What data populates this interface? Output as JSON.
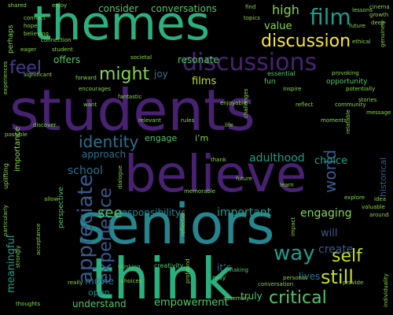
{
  "background": "#000000",
  "palette": {
    "purple-deep": "#440154",
    "purple": "#482173",
    "indigo": "#433e85",
    "blue": "#38598c",
    "teal-blue": "#2d708e",
    "teal": "#25858e",
    "sea-green": "#1e9b8a",
    "green": "#2ab07f",
    "light-green": "#52c569",
    "lime": "#86d549",
    "yellow": "#c2df23",
    "bright-yellow": "#fde725"
  },
  "words": [
    {
      "text": "students"
    },
    {
      "text": "themes"
    },
    {
      "text": "seniors"
    },
    {
      "text": "believe"
    },
    {
      "text": "think"
    },
    {
      "text": "discussions"
    },
    {
      "text": "film"
    },
    {
      "text": "discussion"
    },
    {
      "text": "appreciate"
    },
    {
      "text": "experience"
    },
    {
      "text": "feel"
    },
    {
      "text": "might"
    },
    {
      "text": "identity"
    },
    {
      "text": "world"
    },
    {
      "text": "way"
    },
    {
      "text": "self"
    },
    {
      "text": "still"
    },
    {
      "text": "critical"
    },
    {
      "text": "see"
    },
    {
      "text": "important"
    },
    {
      "text": "engaging"
    },
    {
      "text": "adulthood"
    },
    {
      "text": "choice"
    },
    {
      "text": "consider"
    },
    {
      "text": "conversations"
    },
    {
      "text": "high"
    },
    {
      "text": "value"
    },
    {
      "text": "offers"
    },
    {
      "text": "resonate"
    },
    {
      "text": "films"
    },
    {
      "text": "joy"
    },
    {
      "text": "approach"
    },
    {
      "text": "school"
    },
    {
      "text": "engage"
    },
    {
      "text": "i’m"
    },
    {
      "text": "responsibility"
    },
    {
      "text": "create"
    },
    {
      "text": "will"
    },
    {
      "text": "historical"
    },
    {
      "text": "lives"
    },
    {
      "text": "truly"
    },
    {
      "text": "empowerment"
    },
    {
      "text": "understand"
    },
    {
      "text": "open"
    },
    {
      "text": "movie"
    },
    {
      "text": "it’s"
    },
    {
      "text": "meaningful"
    },
    {
      "text": "importance"
    },
    {
      "text": "perhaps"
    },
    {
      "text": "opportunity"
    },
    {
      "text": "fun"
    },
    {
      "text": "essential"
    },
    {
      "text": "perspective"
    },
    {
      "text": "uplifting"
    },
    {
      "text": "shared"
    },
    {
      "text": "enjoy"
    },
    {
      "text": "future"
    },
    {
      "text": "ethical"
    },
    {
      "text": "societal"
    },
    {
      "text": "personal"
    },
    {
      "text": "challenges"
    },
    {
      "text": "relatable"
    },
    {
      "text": "explore"
    },
    {
      "text": "provide"
    },
    {
      "text": "may"
    },
    {
      "text": "making"
    },
    {
      "text": "creativity"
    },
    {
      "text": "thinking"
    },
    {
      "text": "really"
    },
    {
      "text": "choices"
    },
    {
      "text": "thoughts"
    },
    {
      "text": "strongly"
    },
    {
      "text": "acceptance"
    },
    {
      "text": "want"
    },
    {
      "text": "encourages"
    },
    {
      "text": "forward"
    },
    {
      "text": "significant"
    },
    {
      "text": "individuality"
    },
    {
      "text": "reflection"
    },
    {
      "text": "conversation"
    },
    {
      "text": "impact"
    },
    {
      "text": "around"
    },
    {
      "text": "assembly"
    },
    {
      "text": "profound"
    },
    {
      "text": "thank"
    },
    {
      "text": "valuable"
    },
    {
      "text": "idea"
    },
    {
      "text": "fantastic"
    },
    {
      "text": "moments"
    },
    {
      "text": "inspire"
    },
    {
      "text": "dialogue"
    },
    {
      "text": "cinema"
    },
    {
      "text": "growth"
    },
    {
      "text": "deep"
    },
    {
      "text": "genuinely"
    },
    {
      "text": "find"
    },
    {
      "text": "topics"
    },
    {
      "text": "lessons"
    },
    {
      "text": "connect"
    },
    {
      "text": "hope"
    },
    {
      "text": "believing"
    },
    {
      "text": "experiences"
    },
    {
      "text": "connection"
    },
    {
      "text": "eager"
    },
    {
      "text": "student"
    },
    {
      "text": "reflect"
    },
    {
      "text": "community"
    },
    {
      "text": "potentially"
    },
    {
      "text": "provoking"
    },
    {
      "text": "stories"
    },
    {
      "text": "message"
    },
    {
      "text": "discover"
    },
    {
      "text": "possible"
    },
    {
      "text": "particularly"
    },
    {
      "text": "relevant"
    },
    {
      "text": "rules"
    },
    {
      "text": "enjoyable"
    },
    {
      "text": "life"
    },
    {
      "text": "future"
    },
    {
      "text": "learn"
    },
    {
      "text": "memorable"
    },
    {
      "text": "allow"
    }
  ]
}
